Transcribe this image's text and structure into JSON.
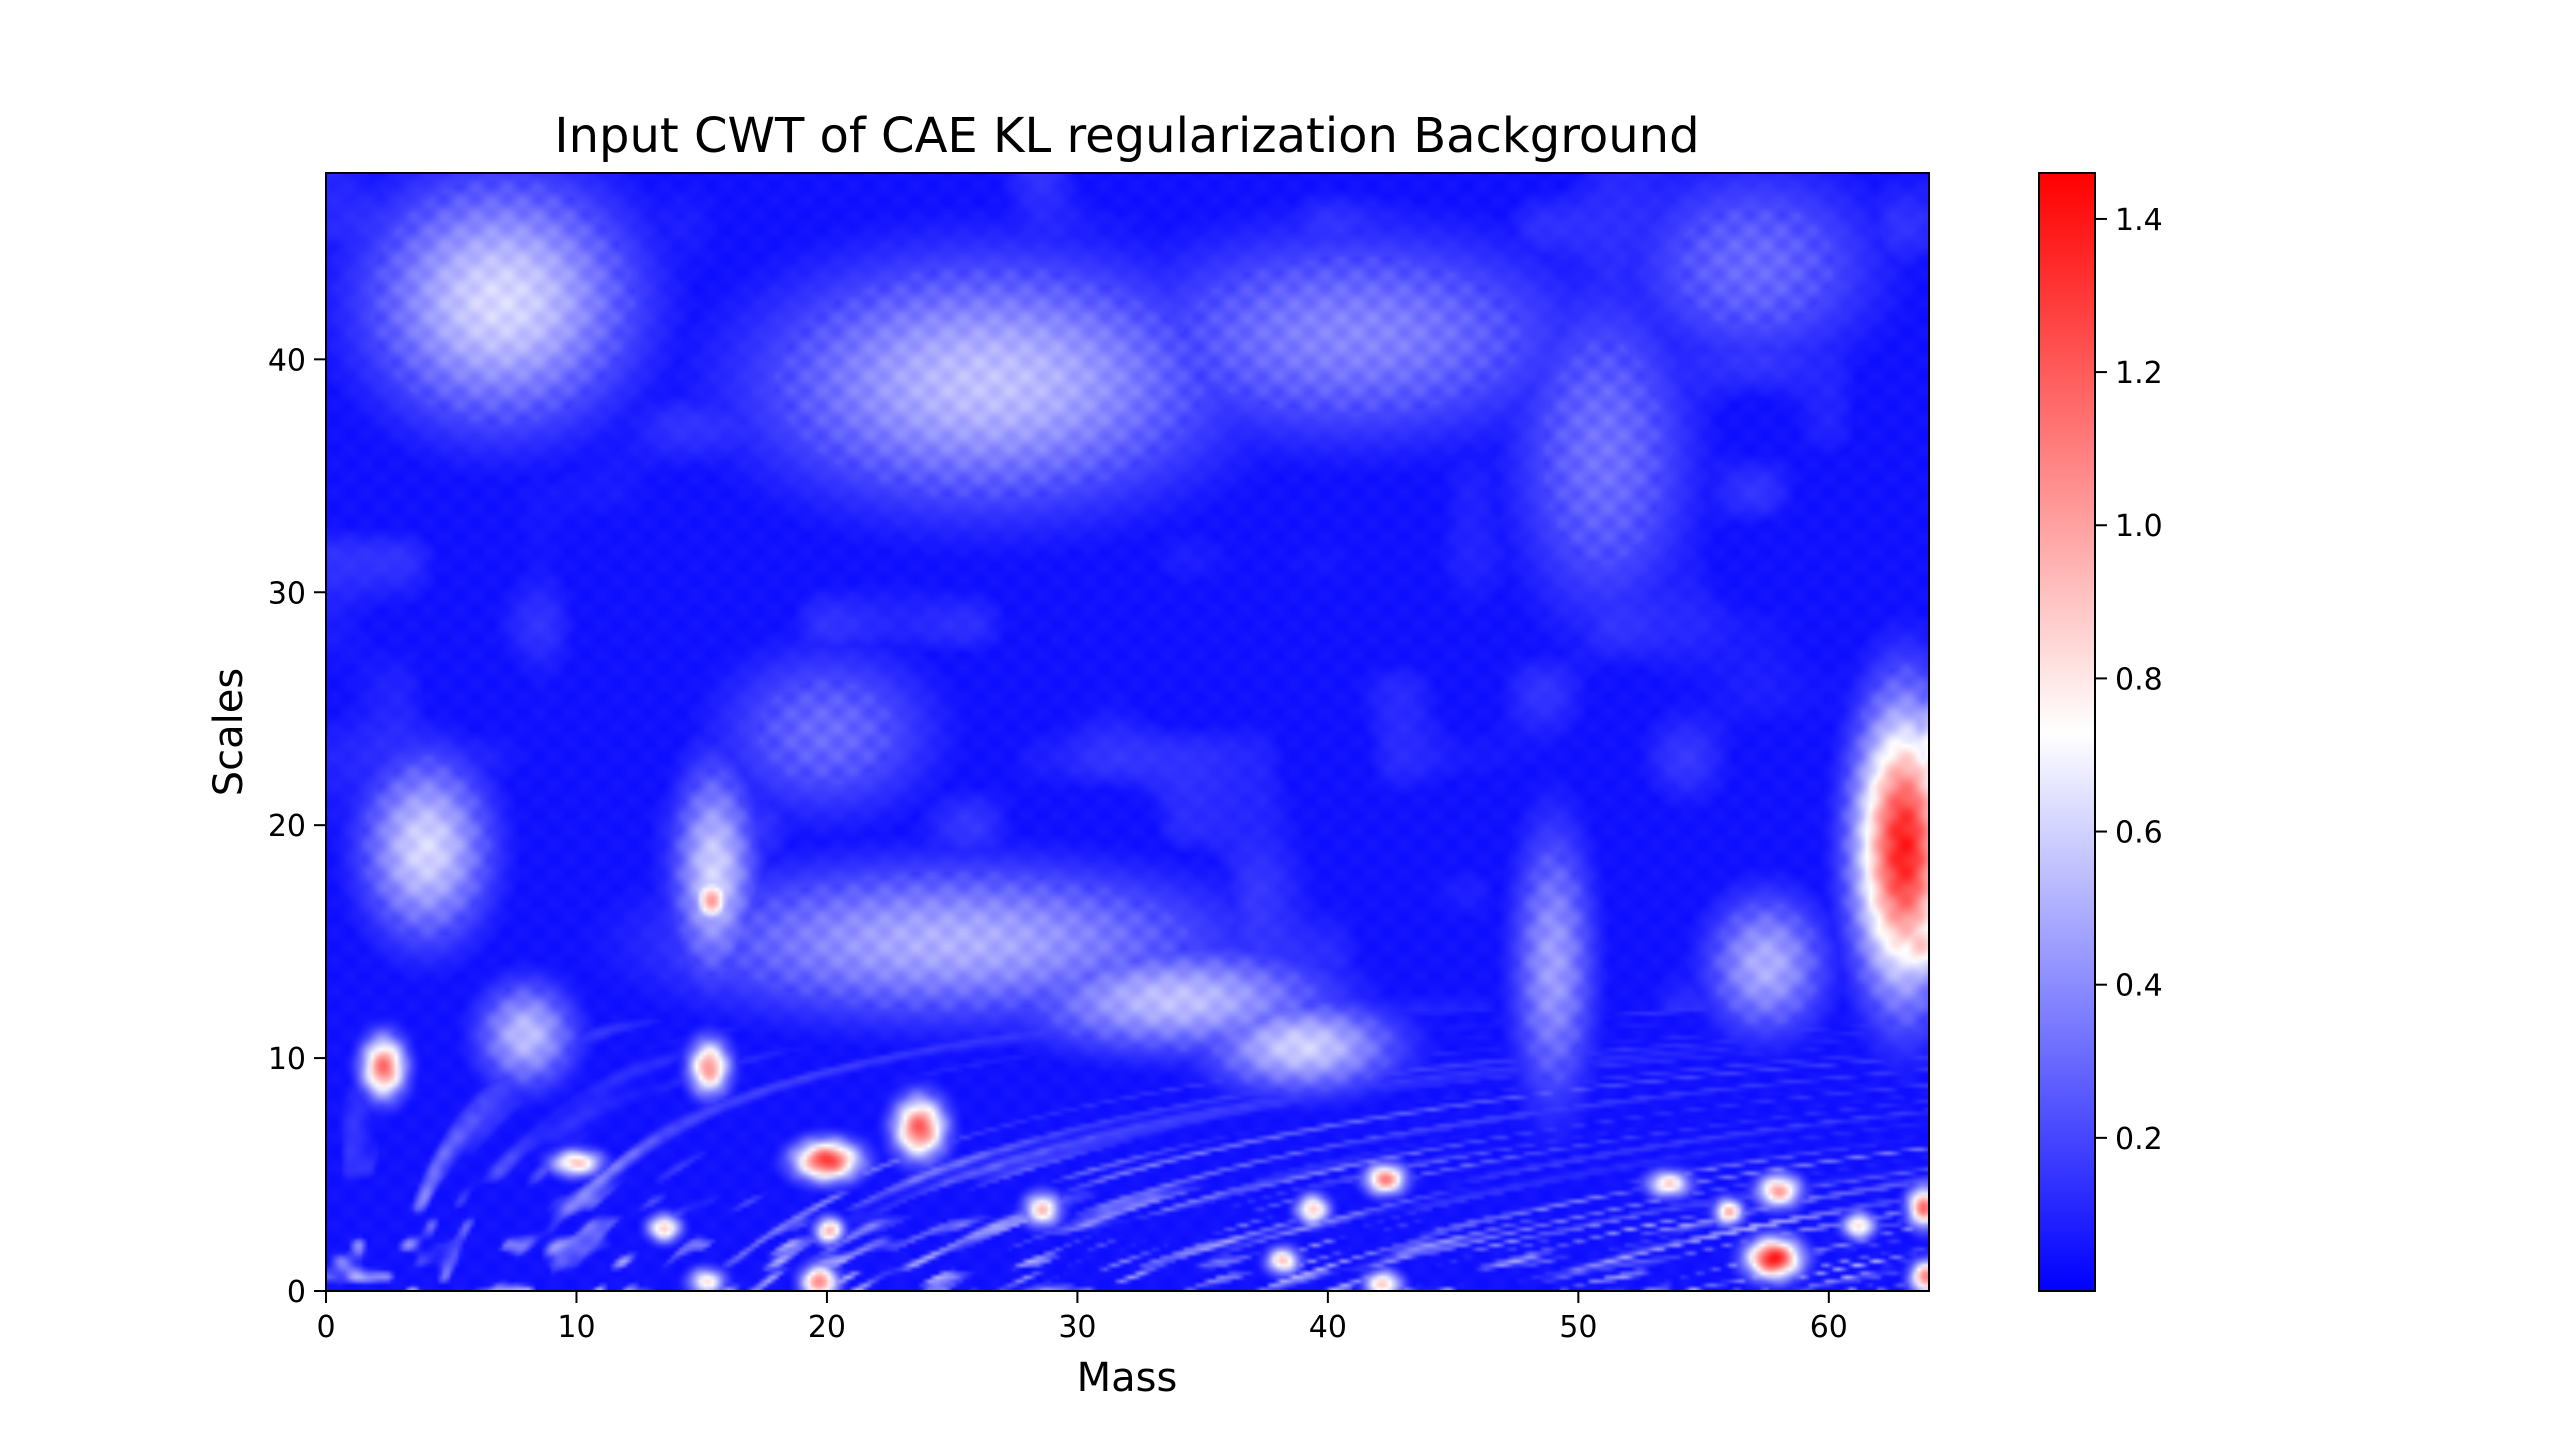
{
  "chart_data": {
    "type": "heatmap",
    "title": "Input CWT of CAE KL regularization Background",
    "xlabel": "Mass",
    "ylabel": "Scales",
    "xlim": [
      0,
      64
    ],
    "ylim": [
      0,
      48
    ],
    "xticks": [
      0,
      10,
      20,
      30,
      40,
      50,
      60
    ],
    "yticks": [
      0,
      10,
      20,
      30,
      40
    ],
    "grid": false,
    "colormap": {
      "name": "bwr",
      "low_color": "#0000ff",
      "mid_color": "#ffffff",
      "high_color": "#ff0000",
      "vmin": 0.0,
      "vmax": 1.46,
      "ticks": [
        0.2,
        0.4,
        0.6,
        0.8,
        1.0,
        1.2,
        1.4
      ]
    },
    "features": [
      {
        "kind": "high",
        "x": 63.0,
        "y": 19.0,
        "sx": 1.3,
        "sy": 4.0,
        "v": 1.38
      },
      {
        "kind": "high",
        "x": 64.0,
        "y": 22.5,
        "sx": 0.6,
        "sy": 2.2,
        "v": 0.8
      },
      {
        "kind": "high",
        "x": 63.6,
        "y": 15.0,
        "sx": 0.9,
        "sy": 1.3,
        "v": 0.9
      },
      {
        "kind": "high",
        "x": 20.0,
        "y": 5.6,
        "sx": 0.9,
        "sy": 0.6,
        "v": 1.3
      },
      {
        "kind": "high",
        "x": 23.7,
        "y": 7.0,
        "sx": 0.7,
        "sy": 0.9,
        "v": 1.2
      },
      {
        "kind": "high",
        "x": 2.3,
        "y": 9.6,
        "sx": 0.6,
        "sy": 0.9,
        "v": 1.15
      },
      {
        "kind": "high",
        "x": 15.3,
        "y": 9.6,
        "sx": 0.55,
        "sy": 0.8,
        "v": 1.05
      },
      {
        "kind": "high",
        "x": 57.8,
        "y": 1.4,
        "sx": 0.75,
        "sy": 0.6,
        "v": 1.4
      },
      {
        "kind": "high",
        "x": 42.3,
        "y": 4.8,
        "sx": 0.55,
        "sy": 0.45,
        "v": 1.1
      },
      {
        "kind": "high",
        "x": 63.8,
        "y": 3.6,
        "sx": 0.45,
        "sy": 0.6,
        "v": 1.15
      },
      {
        "kind": "high",
        "x": 63.9,
        "y": 0.6,
        "sx": 0.45,
        "sy": 0.5,
        "v": 1.1
      },
      {
        "kind": "high",
        "x": 19.7,
        "y": 0.4,
        "sx": 0.5,
        "sy": 0.5,
        "v": 1.1
      },
      {
        "kind": "high",
        "x": 15.4,
        "y": 16.8,
        "sx": 0.5,
        "sy": 0.7,
        "v": 1.0
      },
      {
        "kind": "high",
        "x": 58.0,
        "y": 4.3,
        "sx": 0.6,
        "sy": 0.5,
        "v": 1.0
      },
      {
        "kind": "high",
        "x": 10.0,
        "y": 5.5,
        "sx": 0.7,
        "sy": 0.4,
        "v": 0.9
      },
      {
        "kind": "high",
        "x": 13.5,
        "y": 2.7,
        "sx": 0.45,
        "sy": 0.4,
        "v": 0.9
      },
      {
        "kind": "high",
        "x": 20.1,
        "y": 2.6,
        "sx": 0.4,
        "sy": 0.4,
        "v": 0.95
      },
      {
        "kind": "high",
        "x": 28.6,
        "y": 3.5,
        "sx": 0.5,
        "sy": 0.5,
        "v": 0.9
      },
      {
        "kind": "high",
        "x": 38.2,
        "y": 1.3,
        "sx": 0.45,
        "sy": 0.4,
        "v": 0.9
      },
      {
        "kind": "high",
        "x": 39.4,
        "y": 3.5,
        "sx": 0.45,
        "sy": 0.45,
        "v": 0.9
      },
      {
        "kind": "high",
        "x": 42.2,
        "y": 0.3,
        "sx": 0.5,
        "sy": 0.4,
        "v": 0.9
      },
      {
        "kind": "high",
        "x": 56.0,
        "y": 3.4,
        "sx": 0.4,
        "sy": 0.4,
        "v": 0.95
      },
      {
        "kind": "high",
        "x": 53.6,
        "y": 4.6,
        "sx": 0.6,
        "sy": 0.4,
        "v": 0.85
      },
      {
        "kind": "high",
        "x": 61.2,
        "y": 2.8,
        "sx": 0.45,
        "sy": 0.4,
        "v": 0.85
      },
      {
        "kind": "high",
        "x": 15.2,
        "y": 0.4,
        "sx": 0.5,
        "sy": 0.4,
        "v": 0.8
      },
      {
        "kind": "soft",
        "x": 4.0,
        "y": 19.0,
        "sx": 1.7,
        "sy": 2.6,
        "v": 0.62
      },
      {
        "kind": "soft",
        "x": 7.0,
        "y": 42.5,
        "sx": 3.5,
        "sy": 3.5,
        "v": 0.62
      },
      {
        "kind": "soft",
        "x": 26.5,
        "y": 39.0,
        "sx": 6.0,
        "sy": 3.5,
        "v": 0.55
      },
      {
        "kind": "soft",
        "x": 41.0,
        "y": 41.0,
        "sx": 6.0,
        "sy": 3.0,
        "v": 0.38
      },
      {
        "kind": "soft",
        "x": 51.0,
        "y": 36.0,
        "sx": 2.5,
        "sy": 5.0,
        "v": 0.32
      },
      {
        "kind": "soft",
        "x": 57.0,
        "y": 44.0,
        "sx": 3.5,
        "sy": 3.0,
        "v": 0.3
      },
      {
        "kind": "soft",
        "x": 15.5,
        "y": 18.0,
        "sx": 1.1,
        "sy": 3.0,
        "v": 0.6
      },
      {
        "kind": "soft",
        "x": 25.0,
        "y": 15.0,
        "sx": 7.0,
        "sy": 2.2,
        "v": 0.5
      },
      {
        "kind": "soft",
        "x": 8.0,
        "y": 11.0,
        "sx": 1.3,
        "sy": 1.5,
        "v": 0.55
      },
      {
        "kind": "soft",
        "x": 39.0,
        "y": 10.5,
        "sx": 2.5,
        "sy": 1.3,
        "v": 0.6
      },
      {
        "kind": "soft",
        "x": 49.0,
        "y": 14.0,
        "sx": 1.1,
        "sy": 4.0,
        "v": 0.45
      },
      {
        "kind": "soft",
        "x": 57.5,
        "y": 14.0,
        "sx": 1.6,
        "sy": 2.0,
        "v": 0.5
      },
      {
        "kind": "soft",
        "x": 20.0,
        "y": 24.0,
        "sx": 3.0,
        "sy": 2.5,
        "v": 0.3
      },
      {
        "kind": "soft",
        "x": 34.0,
        "y": 12.5,
        "sx": 4.0,
        "sy": 1.5,
        "v": 0.55
      }
    ]
  }
}
